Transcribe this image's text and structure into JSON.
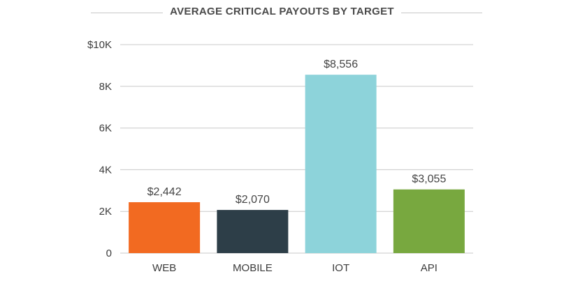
{
  "chart_data": {
    "type": "bar",
    "title": "AVERAGE CRITICAL PAYOUTS BY TARGET",
    "categories": [
      "WEB",
      "MOBILE",
      "IOT",
      "API"
    ],
    "values": [
      2442,
      2070,
      8556,
      3055
    ],
    "data_labels": [
      "$2,442",
      "$2,070",
      "$8,556",
      "$3,055"
    ],
    "colors": [
      "#f26a21",
      "#2d3e48",
      "#8dd3da",
      "#78a83f"
    ],
    "ylim": [
      0,
      10000
    ],
    "y_ticks": [
      0,
      2000,
      4000,
      6000,
      8000,
      10000
    ],
    "y_tick_labels": [
      "0",
      "2K",
      "4K",
      "6K",
      "8K",
      "$10K"
    ],
    "grid": true,
    "legend": "none"
  }
}
